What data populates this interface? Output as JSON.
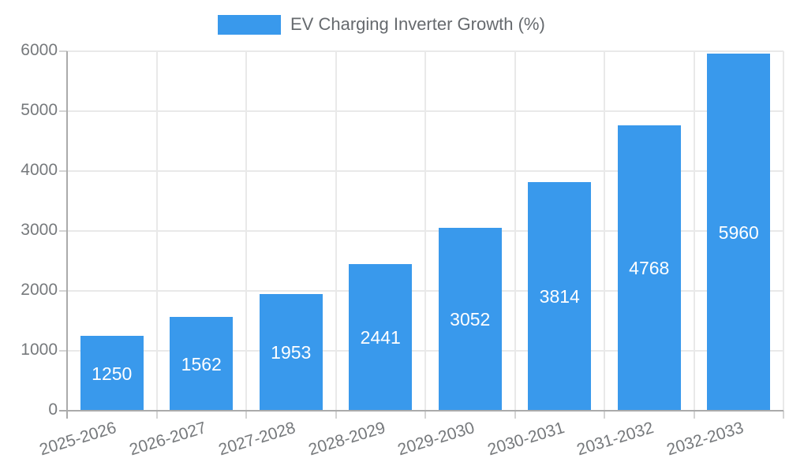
{
  "chart_data": {
    "type": "bar",
    "series_name": "EV Charging Inverter Growth (%)",
    "categories": [
      "2025-2026",
      "2026-2027",
      "2027-2028",
      "2028-2029",
      "2029-2030",
      "2030-2031",
      "2031-2032",
      "2032-2033"
    ],
    "values": [
      1250,
      1562,
      1953,
      2441,
      3052,
      3814,
      4768,
      5960
    ],
    "value_labels": [
      "1250",
      "1562",
      "1953",
      "2441",
      "3052",
      "3814",
      "4768",
      "5960"
    ],
    "yticks": [
      "0",
      "1000",
      "2000",
      "3000",
      "4000",
      "5000",
      "6000"
    ],
    "ylim": [
      0,
      6000
    ],
    "grid": true,
    "legend_position": "top",
    "bar_color": "#3999EC",
    "value_label_color": "#FFFFFF",
    "tick_label_color": "#76797C",
    "legend_text_color": "#666A6E",
    "gridline_color": "#E9E9E9",
    "axis_line_color": "#ABABAB"
  }
}
